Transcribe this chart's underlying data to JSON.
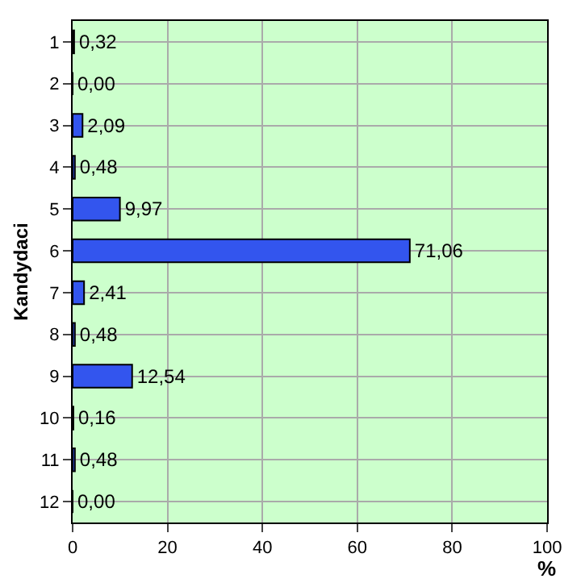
{
  "chart_data": {
    "type": "bar",
    "orientation": "horizontal",
    "ylabel": "Kandydaci",
    "xlabel": "%",
    "categories": [
      "1",
      "2",
      "3",
      "4",
      "5",
      "6",
      "7",
      "8",
      "9",
      "10",
      "11",
      "12"
    ],
    "values": [
      0.32,
      0.0,
      2.09,
      0.48,
      9.97,
      71.06,
      2.41,
      0.48,
      12.54,
      0.16,
      0.48,
      0.0
    ],
    "value_labels": [
      "0,32",
      "0,00",
      "2,09",
      "0,48",
      "9,97",
      "71,06",
      "2,41",
      "0,48",
      "12,54",
      "0,16",
      "0,48",
      "0,00"
    ],
    "color": "#3355ee",
    "xlim": [
      0,
      100
    ],
    "xticks": [
      0,
      20,
      40,
      60,
      80,
      100
    ],
    "grid": true,
    "legend": false
  }
}
